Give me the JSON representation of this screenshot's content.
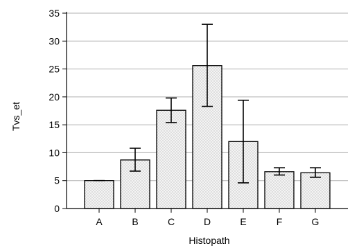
{
  "chart_data": {
    "type": "bar",
    "xlabel": "Histopath",
    "ylabel": "Tvs_et",
    "categories": [
      "A",
      "B",
      "C",
      "D",
      "E",
      "F",
      "G"
    ],
    "values": [
      5.0,
      8.7,
      17.6,
      25.6,
      12.0,
      6.6,
      6.4
    ],
    "error_low": [
      5.0,
      6.7,
      15.4,
      18.3,
      4.6,
      6.0,
      5.6
    ],
    "error_high": [
      5.0,
      10.8,
      19.8,
      33.0,
      19.4,
      7.3,
      7.3
    ],
    "ylim": [
      0,
      35
    ],
    "yticks": [
      0,
      5,
      10,
      15,
      20,
      25,
      30,
      35
    ],
    "grid": true,
    "legend": "none",
    "colors": {
      "bar_fill": "#ececec",
      "bar_stroke": "#000000",
      "grid": "#b0b0b0"
    }
  }
}
